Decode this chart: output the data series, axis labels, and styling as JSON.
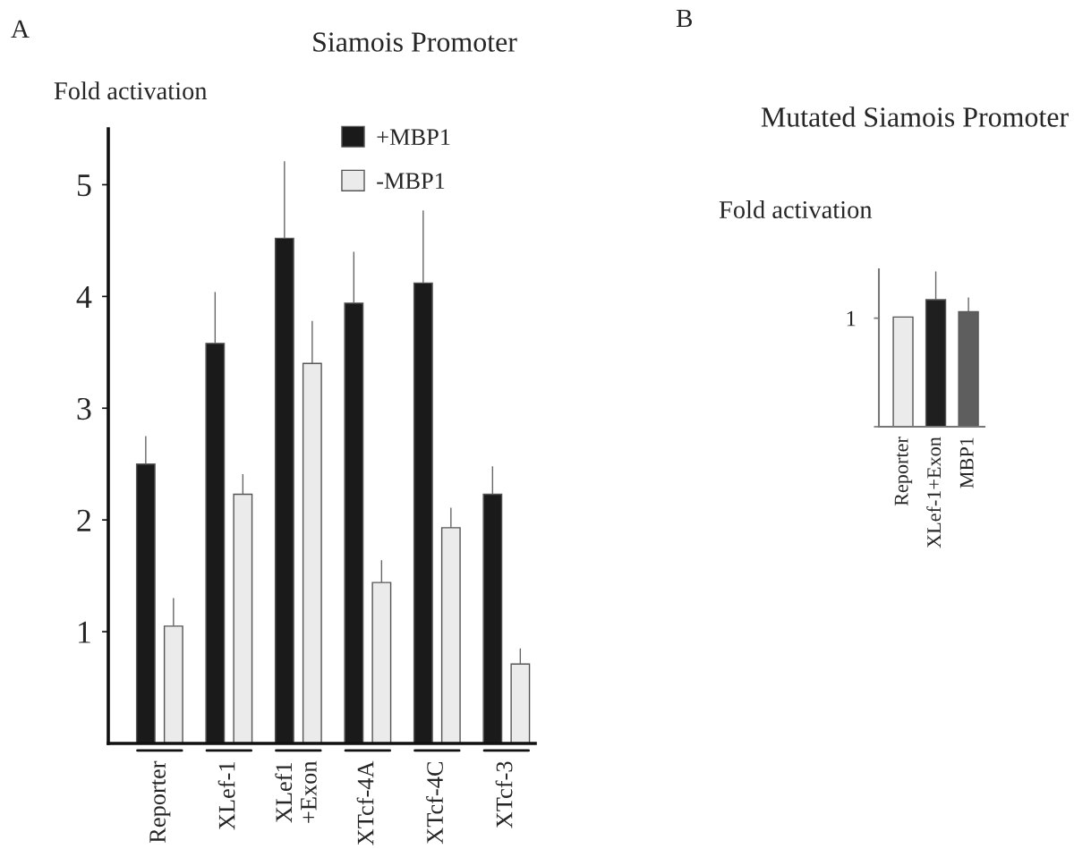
{
  "chart_data": [
    {
      "type": "bar",
      "title": "Siamois Promoter",
      "ylabel": "Fold activation",
      "categories": [
        "Reporter",
        "XLef-1",
        "XLef1\n+Exon",
        "XTcf-4A",
        "XTcf-4C",
        "XTcf-3"
      ],
      "series": [
        {
          "name": "+MBP1",
          "color": "#1a1a1a",
          "values": [
            2.5,
            3.58,
            4.52,
            3.94,
            4.12,
            2.23
          ],
          "errors": [
            [
              2.5,
              2.75
            ],
            [
              3.58,
              4.04
            ],
            [
              4.52,
              5.21
            ],
            [
              3.94,
              4.4
            ],
            [
              4.12,
              4.77
            ],
            [
              2.23,
              2.48
            ]
          ]
        },
        {
          "name": "-MBP1",
          "color": "#ebebeb",
          "values": [
            1.05,
            2.23,
            3.4,
            1.44,
            1.93,
            0.71
          ],
          "errors": [
            [
              1.05,
              1.3
            ],
            [
              2.23,
              2.41
            ],
            [
              3.4,
              3.78
            ],
            [
              1.44,
              1.64
            ],
            [
              1.93,
              2.11
            ],
            [
              0.71,
              0.85
            ]
          ]
        }
      ],
      "ylim": [
        0,
        5.5
      ],
      "yticks": [
        1,
        2,
        3,
        4,
        5
      ],
      "legend": "top",
      "annotations": [
        "A"
      ]
    },
    {
      "type": "bar",
      "title": "Mutated Siamois Promoter",
      "ylabel": "Fold activation",
      "categories": [
        "Reporter",
        "XLef-1+Exon",
        "MBP1"
      ],
      "values": [
        1.01,
        1.17,
        1.06
      ],
      "colors": [
        "#ebebeb",
        "#1f1f1f",
        "#5e5e5e"
      ],
      "errors": [
        null,
        [
          1.17,
          1.43
        ],
        [
          1.06,
          1.19
        ]
      ],
      "ylim": [
        0,
        1.45
      ],
      "yticks": [
        {
          "value": 0,
          "label": null
        },
        1
      ],
      "annotations": [
        "B"
      ]
    }
  ]
}
